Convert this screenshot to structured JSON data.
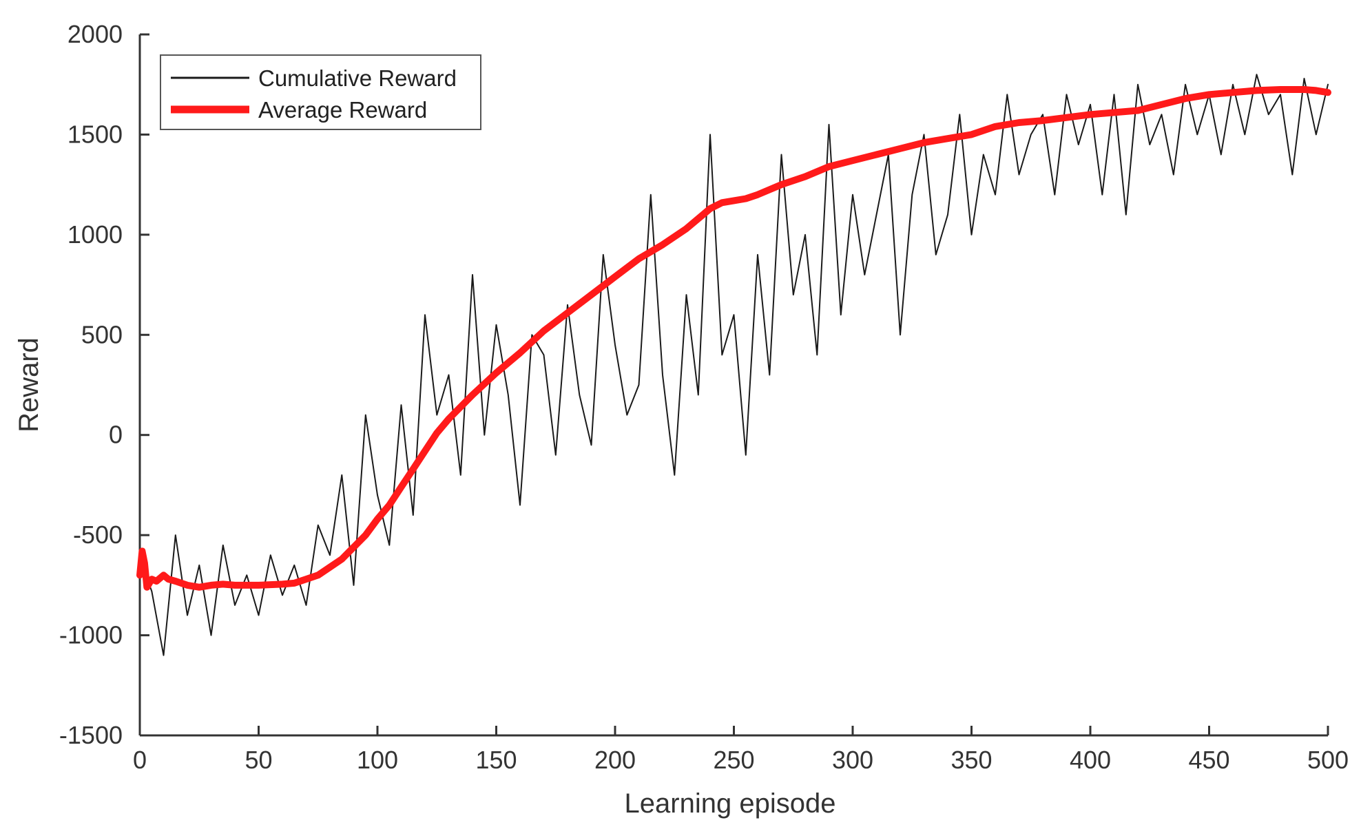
{
  "chart_data": {
    "type": "line",
    "title": "",
    "xlabel": "Learning episode",
    "ylabel": "Reward",
    "xlim": [
      0,
      500
    ],
    "ylim": [
      -1500,
      2000
    ],
    "xticks": [
      0,
      50,
      100,
      150,
      200,
      250,
      300,
      350,
      400,
      450,
      500
    ],
    "yticks": [
      2000,
      1500,
      1000,
      500,
      0,
      -500,
      -1000,
      -1500
    ],
    "grid": false,
    "legend_position": "top-left",
    "series": [
      {
        "name": "Cumulative Reward",
        "color": "#1a1a1a",
        "style": "thin",
        "x": [
          0,
          5,
          10,
          15,
          20,
          25,
          30,
          35,
          40,
          45,
          50,
          55,
          60,
          65,
          70,
          75,
          80,
          85,
          90,
          95,
          100,
          105,
          110,
          115,
          120,
          125,
          130,
          135,
          140,
          145,
          150,
          155,
          160,
          165,
          170,
          175,
          180,
          185,
          190,
          195,
          200,
          205,
          210,
          215,
          220,
          225,
          230,
          235,
          240,
          245,
          250,
          255,
          260,
          265,
          270,
          275,
          280,
          285,
          290,
          295,
          300,
          305,
          310,
          315,
          320,
          325,
          330,
          335,
          340,
          345,
          350,
          355,
          360,
          365,
          370,
          375,
          380,
          385,
          390,
          395,
          400,
          405,
          410,
          415,
          420,
          425,
          430,
          435,
          440,
          445,
          450,
          455,
          460,
          465,
          470,
          475,
          480,
          485,
          490,
          495,
          500
        ],
        "values": [
          -620,
          -780,
          -1100,
          -500,
          -900,
          -650,
          -1000,
          -550,
          -850,
          -700,
          -900,
          -600,
          -800,
          -650,
          -850,
          -450,
          -600,
          -200,
          -750,
          100,
          -300,
          -550,
          150,
          -400,
          600,
          100,
          300,
          -200,
          800,
          0,
          550,
          200,
          -350,
          500,
          400,
          -100,
          650,
          200,
          -50,
          900,
          450,
          100,
          250,
          1200,
          300,
          -200,
          700,
          200,
          1500,
          400,
          600,
          -100,
          900,
          300,
          1400,
          700,
          1000,
          400,
          1550,
          600,
          1200,
          800,
          1100,
          1400,
          500,
          1200,
          1500,
          900,
          1100,
          1600,
          1000,
          1400,
          1200,
          1700,
          1300,
          1500,
          1600,
          1200,
          1700,
          1450,
          1650,
          1200,
          1700,
          1100,
          1750,
          1450,
          1600,
          1300,
          1750,
          1500,
          1700,
          1400,
          1750,
          1500,
          1800,
          1600,
          1700,
          1300,
          1780,
          1500,
          1750
        ]
      },
      {
        "name": "Average Reward",
        "color": "#ff1a1a",
        "style": "thick",
        "x": [
          0,
          1,
          2,
          3,
          5,
          7,
          10,
          12,
          15,
          20,
          25,
          30,
          35,
          40,
          50,
          60,
          65,
          70,
          75,
          80,
          85,
          90,
          95,
          100,
          105,
          110,
          115,
          120,
          125,
          130,
          140,
          150,
          160,
          170,
          180,
          190,
          200,
          210,
          220,
          230,
          240,
          245,
          250,
          255,
          260,
          270,
          280,
          290,
          300,
          310,
          320,
          330,
          340,
          350,
          360,
          370,
          380,
          400,
          420,
          430,
          440,
          450,
          460,
          470,
          480,
          490,
          495,
          500
        ],
        "values": [
          -700,
          -580,
          -640,
          -760,
          -720,
          -730,
          -700,
          -720,
          -730,
          -750,
          -760,
          -750,
          -745,
          -750,
          -750,
          -745,
          -740,
          -720,
          -700,
          -660,
          -620,
          -560,
          -500,
          -420,
          -350,
          -260,
          -170,
          -80,
          10,
          80,
          200,
          310,
          410,
          520,
          610,
          700,
          790,
          880,
          950,
          1030,
          1130,
          1160,
          1170,
          1180,
          1200,
          1250,
          1290,
          1340,
          1370,
          1400,
          1430,
          1460,
          1480,
          1500,
          1540,
          1560,
          1570,
          1600,
          1620,
          1650,
          1680,
          1700,
          1710,
          1720,
          1725,
          1725,
          1720,
          1710
        ]
      }
    ]
  }
}
